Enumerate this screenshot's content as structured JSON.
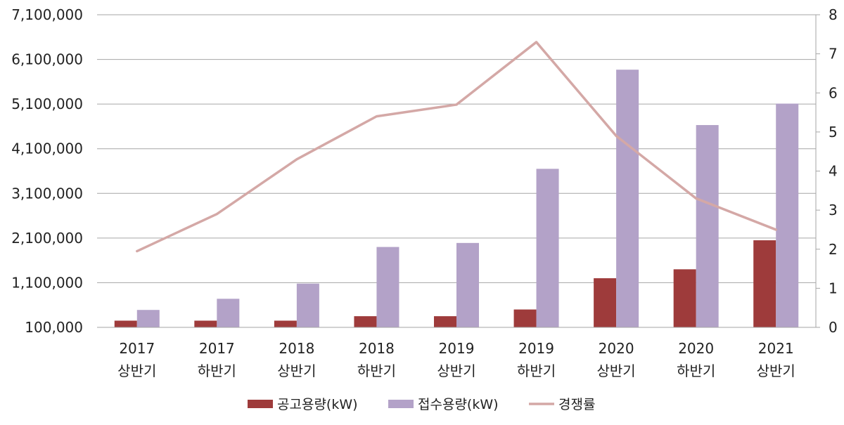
{
  "chart_data": {
    "type": "bar",
    "title": "",
    "categories": [
      [
        "2017",
        "상반기"
      ],
      [
        "2017",
        "하반기"
      ],
      [
        "2018",
        "상반기"
      ],
      [
        "2018",
        "하반기"
      ],
      [
        "2019",
        "상반기"
      ],
      [
        "2019",
        "하반기"
      ],
      [
        "2020",
        "상반기"
      ],
      [
        "2020",
        "하반기"
      ],
      [
        "2021",
        "상반기"
      ]
    ],
    "left_axis": {
      "min": 100000,
      "max": 7100000,
      "step": 1000000,
      "tick_labels": [
        "100,000",
        "1,100,000",
        "2,100,000",
        "3,100,000",
        "4,100,000",
        "5,100,000",
        "6,100,000",
        "7,100,000"
      ]
    },
    "right_axis": {
      "min": 0,
      "max": 8,
      "step": 1,
      "tick_labels": [
        "0",
        "1",
        "2",
        "3",
        "4",
        "5",
        "6",
        "7",
        "8"
      ]
    },
    "series": [
      {
        "name": "공고용량(kW)",
        "kind": "bar",
        "axis": "left",
        "color": "#9e3b3b",
        "values": [
          250000,
          250000,
          250000,
          350000,
          350000,
          500000,
          1200000,
          1400000,
          2050000
        ]
      },
      {
        "name": "접수용량(kW)",
        "kind": "bar",
        "axis": "left",
        "color": "#b3a2c8",
        "values": [
          490000,
          740000,
          1080000,
          1900000,
          1990000,
          3650000,
          5870000,
          4630000,
          5110000
        ]
      },
      {
        "name": "경쟁률",
        "kind": "line",
        "axis": "right",
        "color": "#d4a8a6",
        "values": [
          1.95,
          2.9,
          4.3,
          5.4,
          5.7,
          7.3,
          4.9,
          3.3,
          2.5
        ]
      }
    ],
    "legend": [
      "공고용량(kW)",
      "접수용량(kW)",
      "경쟁률"
    ],
    "legend_position": "bottom",
    "grid": true
  }
}
